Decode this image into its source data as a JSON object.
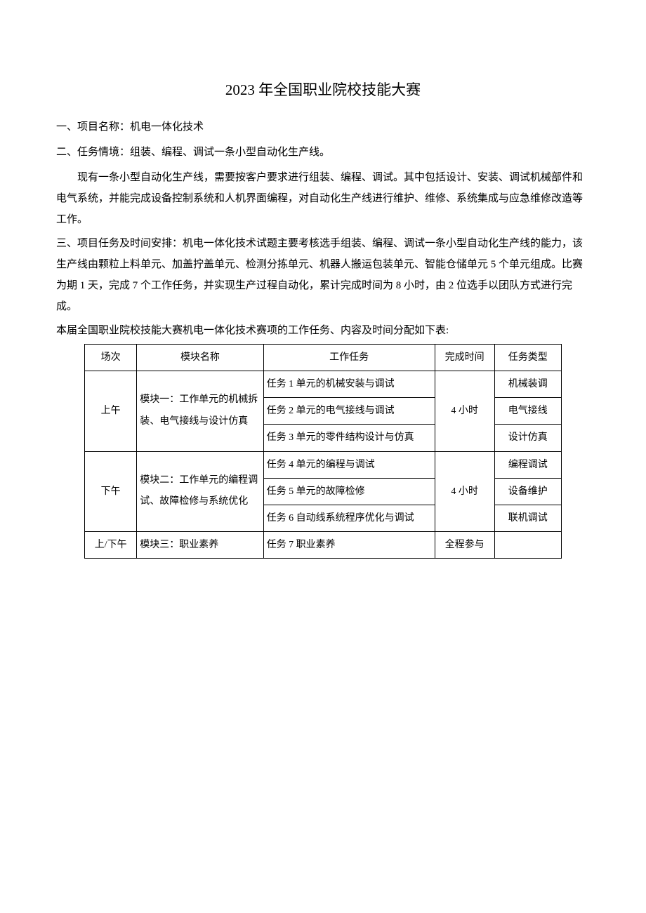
{
  "title": "2023 年全国职业院校技能大赛",
  "section1": {
    "heading": "一、项目名称：机电一体化技术"
  },
  "section2": {
    "heading": "二、任务情境：组装、编程、调试一条小型自动化生产线。",
    "body": "现有一条小型自动化生产线，需要按客户要求进行组装、编程、调试。其中包括设计、安装、调试机械部件和电气系统，并能完成设备控制系统和人机界面编程，对自动化生产线进行维护、维修、系统集成与应急维修改造等工作。"
  },
  "section3": {
    "heading_prefix": "三、项目任务及时间安排：",
    "body": "机电一体化技术试题主要考核选手组装、编程、调试一条小型自动化生产线的能力，该生产线由颗粒上料单元、加盖拧盖单元、检测分拣单元、机器人搬运包装单元、智能仓储单元 5 个单元组成。比赛为期 1 天，完成 7 个工作任务，并实现生产过程自动化，累计完成时间为 8 小时，由 2 位选手以团队方式进行完成。"
  },
  "table_intro": "本届全国职业院校技能大赛机电一体化技术赛项的工作任务、内容及时间分配如下表:",
  "table": {
    "headers": {
      "session": "场次",
      "module": "模块名称",
      "task": "工作任务",
      "time": "完成时间",
      "type": "任务类型"
    },
    "rows": [
      {
        "session": "上午",
        "module": "模块一：工作单元的机械拆装、电气接线与设计仿真",
        "time": "4 小时",
        "tasks": [
          {
            "task": "任务 1 单元的机械安装与调试",
            "type": "机械装调"
          },
          {
            "task": "任务 2 单元的电气接线与调试",
            "type": "电气接线"
          },
          {
            "task": "任务 3 单元的零件结构设计与仿真",
            "type": "设计仿真"
          }
        ]
      },
      {
        "session": "下午",
        "module": "模块二：工作单元的编程调试、故障检修与系统优化",
        "time": "4 小时",
        "tasks": [
          {
            "task": "任务 4 单元的编程与调试",
            "type": "编程调试"
          },
          {
            "task": "任务 5 单元的故障检修",
            "type": "设备维护"
          },
          {
            "task": "任务 6 自动线系统程序优化与调试",
            "type": "联机调试"
          }
        ]
      },
      {
        "session": "上/下午",
        "module": "模块三：职业素养",
        "time": "全程参与",
        "tasks": [
          {
            "task": "任务 7 职业素养",
            "type": ""
          }
        ]
      }
    ]
  },
  "colors": {
    "text": "#000000",
    "background": "#ffffff",
    "border": "#000000"
  }
}
